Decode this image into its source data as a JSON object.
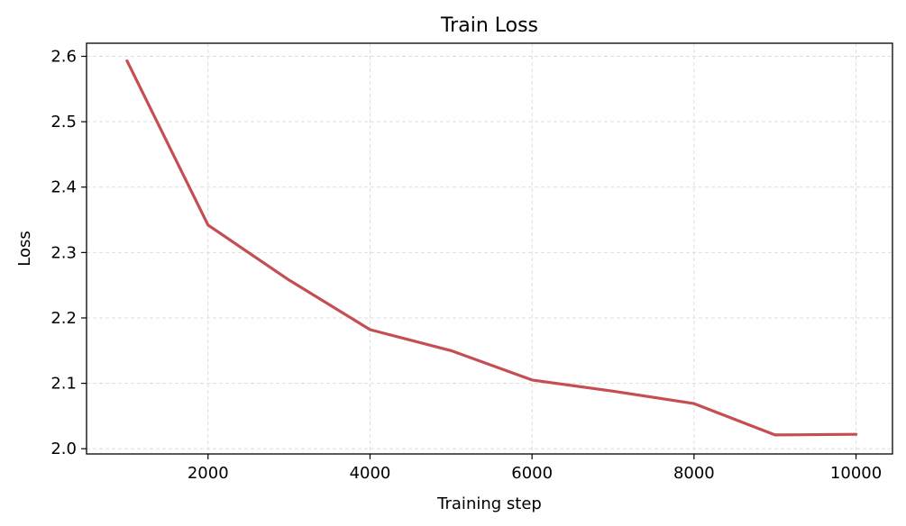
{
  "chart_data": {
    "type": "line",
    "title": "Train Loss",
    "xlabel": "Training step",
    "ylabel": "Loss",
    "xlim": [
      500,
      10450
    ],
    "ylim": [
      1.992,
      2.62
    ],
    "xticks": [
      2000,
      4000,
      6000,
      8000,
      10000
    ],
    "yticks": [
      2.0,
      2.1,
      2.2,
      2.3,
      2.4,
      2.5,
      2.6
    ],
    "xtick_labels": [
      "2000",
      "4000",
      "6000",
      "8000",
      "10000"
    ],
    "ytick_labels": [
      "2.0",
      "2.1",
      "2.2",
      "2.3",
      "2.4",
      "2.5",
      "2.6"
    ],
    "grid": true,
    "series": [
      {
        "color": "#c44e52",
        "x": [
          1000,
          2000,
          3000,
          4000,
          5000,
          6000,
          7000,
          8000,
          9000,
          10000
        ],
        "y": [
          2.593,
          2.342,
          2.258,
          2.182,
          2.15,
          2.105,
          2.088,
          2.069,
          2.021,
          2.022
        ]
      }
    ]
  }
}
